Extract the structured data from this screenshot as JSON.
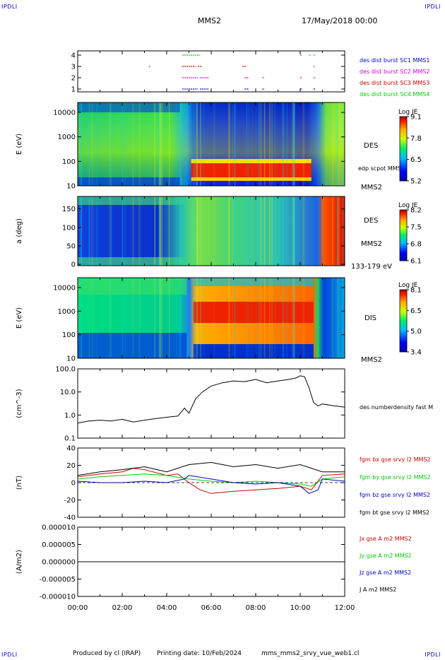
{
  "corners": {
    "top_left": "IPDLI",
    "top_right": "IPDLI",
    "bottom_left": "IPDLI",
    "bottom_right": "IPDLI"
  },
  "header": {
    "spacecraft": "MMS2",
    "datetime": "17/May/2018 00:00"
  },
  "footer": {
    "produced_by": "Produced by cl (IRAP)",
    "printing_date": "Printing date: 10/Feb/2024",
    "filename": "mms_mms2_srvy_vue_web1.cl"
  },
  "x_ticks": [
    "00:00",
    "02:00",
    "04:00",
    "06:00",
    "08:00",
    "10:00",
    "12:00"
  ],
  "colors": {
    "blue": "#0000cc",
    "magenta": "#cc00cc",
    "red": "#cc0000",
    "green": "#00cc00",
    "black": "#000000"
  },
  "chart_data": [
    {
      "type": "scatter",
      "y_ticks": [
        "1",
        "2",
        "3",
        "4"
      ],
      "x_range_hours": [
        0,
        12
      ],
      "series": [
        {
          "name": "des dist burst SC1 MMS1",
          "y": 1,
          "color": "#0000cc",
          "segments": [
            [
              4.7,
              5.4
            ],
            [
              5.5,
              5.9
            ],
            [
              7.5,
              7.7
            ],
            [
              8.3,
              8.4
            ],
            [
              10.0,
              10.1
            ],
            [
              10.6,
              10.7
            ]
          ]
        },
        {
          "name": "des dist burst SC2 MMS2",
          "y": 2,
          "color": "#cc00cc",
          "segments": [
            [
              4.7,
              5.4
            ],
            [
              5.5,
              5.9
            ],
            [
              7.5,
              7.7
            ],
            [
              8.3,
              8.4
            ],
            [
              10.0,
              10.1
            ],
            [
              10.6,
              10.7
            ]
          ]
        },
        {
          "name": "des dist burst SC3 MMS3",
          "y": 3,
          "color": "#cc0000",
          "segments": [
            [
              3.2,
              3.25
            ],
            [
              4.7,
              5.3
            ],
            [
              5.4,
              5.6
            ],
            [
              7.4,
              7.6
            ],
            [
              10.6,
              10.65
            ]
          ]
        },
        {
          "name": "des dist burst SC4 MMS4",
          "y": 4,
          "color": "#00cc00",
          "segments": [
            [
              4.7,
              5.5
            ],
            [
              10.0,
              10.1
            ],
            [
              10.4,
              10.5
            ],
            [
              10.6,
              10.7
            ]
          ]
        }
      ]
    },
    {
      "type": "heatmap",
      "ylabel": "E (eV)",
      "y_ticks": [
        "10",
        "100",
        "1000",
        "10000"
      ],
      "label": "DES",
      "extra_label": "edp scpot MMS2",
      "sc_label": "MMS2",
      "colorbar": {
        "title": "Log JE",
        "ticks": [
          "9.1",
          "7.8",
          "6.5",
          "5.2"
        ]
      }
    },
    {
      "type": "heatmap",
      "ylabel": "a (deg)",
      "y_ticks": [
        "0",
        "50",
        "100",
        "150"
      ],
      "label": "DES",
      "sc_label": "MMS2",
      "energy_range": "133-179 eV",
      "colorbar": {
        "title": "Log JE",
        "ticks": [
          "8.2",
          "7.5",
          "6.8",
          "6.1"
        ]
      }
    },
    {
      "type": "heatmap",
      "ylabel": "E (eV)",
      "y_ticks": [
        "10",
        "100",
        "1000",
        "10000"
      ],
      "label": "DIS",
      "sc_label": "MMS2",
      "colorbar": {
        "title": "Log JE",
        "ticks": [
          "8.1",
          "6.5",
          "5.0",
          "3.4"
        ]
      }
    },
    {
      "type": "line",
      "ylabel": "(cm^-3)",
      "y_ticks": [
        "0.1",
        "1.0",
        "10.0",
        "100.0"
      ],
      "y_scale": "log",
      "ylim": [
        0.1,
        100
      ],
      "series": [
        {
          "name": "des numberdensity fast M",
          "color": "#000000",
          "x": [
            0,
            0.5,
            1,
            1.5,
            2,
            2.5,
            3,
            3.5,
            4,
            4.5,
            4.8,
            5.0,
            5.3,
            5.6,
            6,
            6.5,
            7,
            7.5,
            8,
            8.5,
            9,
            9.5,
            9.8,
            10.0,
            10.2,
            10.4,
            10.6,
            10.8,
            11.0,
            11.5,
            12
          ],
          "y": [
            0.45,
            0.55,
            0.6,
            0.55,
            0.65,
            0.5,
            0.6,
            0.7,
            0.8,
            0.9,
            2.0,
            1.2,
            5.0,
            10.0,
            18.0,
            25.0,
            30.0,
            28.0,
            35.0,
            25.0,
            30.0,
            35.0,
            40.0,
            50.0,
            45.0,
            15.0,
            3.5,
            2.5,
            3.0,
            2.5,
            2.2
          ]
        }
      ]
    },
    {
      "type": "line",
      "ylabel": "(nT)",
      "y_ticks": [
        "-40",
        "-20",
        "0",
        "20",
        "40"
      ],
      "ylim": [
        -48,
        48
      ],
      "series": [
        {
          "name": "fgm bx gse srvy l2 MMS2",
          "color": "#cc0000",
          "x": [
            0,
            1,
            2,
            2.5,
            3,
            4,
            4.5,
            5,
            5.5,
            6,
            7,
            8,
            9,
            10,
            10.5,
            11,
            12
          ],
          "y": [
            8,
            12,
            15,
            20,
            18,
            10,
            12,
            0,
            -10,
            -15,
            -12,
            -10,
            -8,
            -5,
            -10,
            10,
            12
          ]
        },
        {
          "name": "fgm by gse srvy l2 MMS2",
          "color": "#00cc00",
          "x": [
            0,
            1,
            2,
            3,
            4,
            5,
            6,
            7,
            8,
            9,
            10,
            10.5,
            11,
            12
          ],
          "y": [
            5,
            8,
            10,
            12,
            10,
            5,
            2,
            0,
            2,
            0,
            -2,
            -5,
            5,
            8
          ]
        },
        {
          "name": "fgm bz gse srvy l2 MMS2",
          "color": "#0000cc",
          "x": [
            0,
            1,
            2,
            3,
            4,
            4.8,
            5,
            6,
            7,
            8,
            9,
            10,
            10.4,
            10.8,
            11,
            12
          ],
          "y": [
            2,
            0,
            0,
            2,
            0,
            5,
            10,
            5,
            0,
            -2,
            0,
            -5,
            -15,
            -10,
            5,
            2
          ]
        },
        {
          "name": "fgm bt gse srvy l2 MMS2",
          "color": "#000000",
          "x": [
            0,
            1,
            2,
            3,
            4,
            4.5,
            5,
            6,
            7,
            8,
            9,
            10,
            10.5,
            11,
            12
          ],
          "y": [
            10,
            15,
            18,
            22,
            15,
            20,
            25,
            28,
            22,
            25,
            20,
            25,
            20,
            15,
            15
          ]
        }
      ]
    },
    {
      "type": "line",
      "ylabel": "(A/m2)",
      "y_ticks": [
        "-0.000010",
        "-0.000005",
        "0.000000",
        "0.000005",
        "0.000010"
      ],
      "ylim": [
        -1e-05,
        1e-05
      ],
      "series": [
        {
          "name": "Jx gse A m2 MMS2",
          "color": "#cc0000",
          "x": [
            0,
            12
          ],
          "y": [
            0,
            0
          ]
        },
        {
          "name": "Jy gse A m2 MMS2",
          "color": "#00cc00",
          "x": [
            0,
            12
          ],
          "y": [
            0,
            0
          ]
        },
        {
          "name": "Jz gse A m2 MMS2",
          "color": "#0000cc",
          "x": [
            0,
            12
          ],
          "y": [
            0,
            0
          ]
        },
        {
          "name": "J A m2 MMS2",
          "color": "#000000",
          "x": [
            0,
            12
          ],
          "y": [
            0,
            0
          ]
        }
      ]
    }
  ]
}
